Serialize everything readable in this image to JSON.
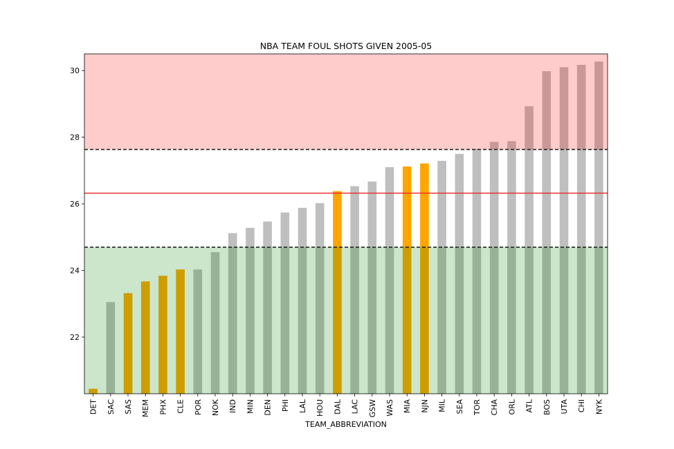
{
  "chart_data": {
    "type": "bar",
    "title": "NBA TEAM FOUL SHOTS GIVEN 2005-05",
    "xlabel": "TEAM_ABBREVIATION",
    "ylabel": "",
    "ylim": [
      20.3,
      30.5
    ],
    "yticks": [
      22,
      24,
      26,
      28,
      30
    ],
    "categories": [
      "DET",
      "SAC",
      "SAS",
      "MEM",
      "PHX",
      "CLE",
      "POR",
      "NOK",
      "IND",
      "MIN",
      "DEN",
      "PHI",
      "LAL",
      "HOU",
      "DAL",
      "LAC",
      "GSW",
      "WAS",
      "MIA",
      "NJN",
      "MIL",
      "SEA",
      "TOR",
      "CHA",
      "ORL",
      "ATL",
      "BOS",
      "UTA",
      "CHI",
      "NYK"
    ],
    "values": [
      20.45,
      23.05,
      23.32,
      23.67,
      23.84,
      24.03,
      24.03,
      24.55,
      25.12,
      25.28,
      25.47,
      25.74,
      25.88,
      26.02,
      26.38,
      26.53,
      26.67,
      27.1,
      27.12,
      27.21,
      27.29,
      27.5,
      27.65,
      27.86,
      27.88,
      28.93,
      29.98,
      30.1,
      30.17,
      30.27
    ],
    "highlighted": [
      "DET",
      "SAS",
      "MEM",
      "PHX",
      "CLE",
      "DAL",
      "MIA",
      "NJN"
    ],
    "reference_lines": {
      "mean": 26.32,
      "lower": 24.7,
      "upper": 27.63
    },
    "bands": {
      "upper_color": "#ffcccc",
      "lower_color": "#cce6cc"
    },
    "colors": {
      "bar_default": "#bfbfbf",
      "bar_highlight": "#ffa500",
      "mean_line": "#e8312f",
      "bound_line": "#222222",
      "band_overlay": "rgba(255,255,255,0)"
    },
    "grid": false
  }
}
